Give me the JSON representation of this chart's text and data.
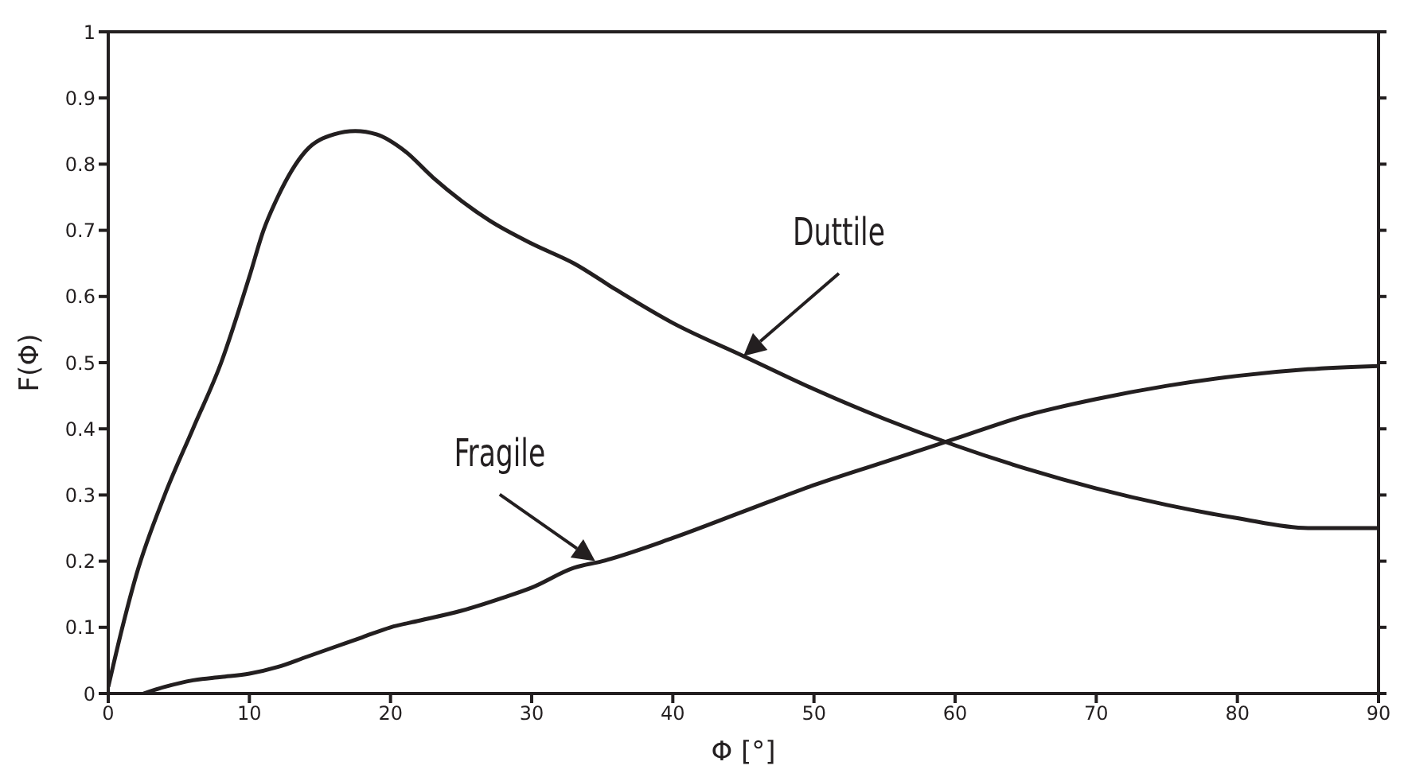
{
  "chart_data": {
    "type": "line",
    "xlabel": "Φ [°]",
    "ylabel": "F(Φ)",
    "xlim": [
      0,
      90
    ],
    "xticks": [
      0,
      10,
      20,
      30,
      40,
      50,
      60,
      70,
      80,
      90
    ],
    "ylim": [
      0,
      1
    ],
    "yticks": [
      0,
      0.1,
      0.2,
      0.3,
      0.4,
      0.5,
      0.6,
      0.7,
      0.8,
      0.9,
      1
    ],
    "marker": "none",
    "line_style": "solid",
    "series": [
      {
        "color": "#231f20",
        "x": [
          0,
          1,
          2,
          4,
          6,
          8,
          10,
          11,
          12,
          14,
          16,
          17.5,
          19,
          21,
          23,
          25,
          27,
          30,
          33,
          36,
          40,
          45,
          50,
          55,
          60,
          65,
          70,
          75,
          80,
          85,
          90
        ],
        "values": [
          0.01,
          0.1,
          0.18,
          0.3,
          0.4,
          0.5,
          0.63,
          0.7,
          0.75,
          0.82,
          0.845,
          0.85,
          0.845,
          0.82,
          0.78,
          0.745,
          0.715,
          0.68,
          0.65,
          0.61,
          0.56,
          0.51,
          0.46,
          0.415,
          0.375,
          0.34,
          0.31,
          0.285,
          0.265,
          0.25,
          0.25
        ]
      },
      {
        "color": "#231f20",
        "x": [
          2.5,
          4,
          6,
          8,
          10,
          12,
          14,
          16,
          18,
          20,
          22,
          25,
          28,
          30,
          33,
          35,
          40,
          45,
          50,
          55,
          60,
          65,
          70,
          75,
          80,
          85,
          90
        ],
        "values": [
          0,
          0.01,
          0.02,
          0.025,
          0.03,
          0.04,
          0.055,
          0.07,
          0.085,
          0.1,
          0.11,
          0.125,
          0.145,
          0.16,
          0.19,
          0.2,
          0.235,
          0.275,
          0.315,
          0.35,
          0.385,
          0.42,
          0.445,
          0.465,
          0.48,
          0.49,
          0.495
        ]
      }
    ],
    "annotations": [
      {
        "text": "Duttile",
        "x": 45,
        "y": 0.51
      },
      {
        "text": "Fragile",
        "x": 34.5,
        "y": 0.2
      }
    ]
  }
}
